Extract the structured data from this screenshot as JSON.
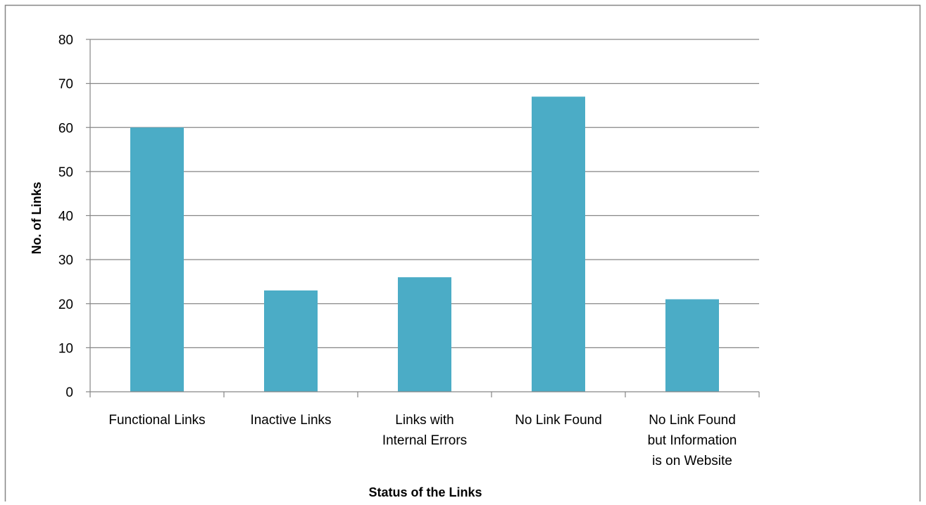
{
  "chart_data": {
    "type": "bar",
    "title": "",
    "xlabel": "Status of the Links",
    "ylabel": "No. of Links",
    "categories": [
      [
        "Functional Links"
      ],
      [
        "Inactive Links"
      ],
      [
        "Links with",
        "Internal Errors"
      ],
      [
        "No Link Found"
      ],
      [
        "No Link Found",
        "but Information",
        "is on Website"
      ]
    ],
    "values": [
      60,
      23,
      26,
      67,
      21
    ],
    "ylim": [
      0,
      80
    ],
    "yticks": [
      0,
      10,
      20,
      30,
      40,
      50,
      60,
      70,
      80
    ],
    "grid": true,
    "legend": "none",
    "colors": {
      "bar": "#4BACC6",
      "grid": "#868686",
      "axis": "#868686",
      "text": "#000000",
      "frame": "#868686"
    }
  }
}
